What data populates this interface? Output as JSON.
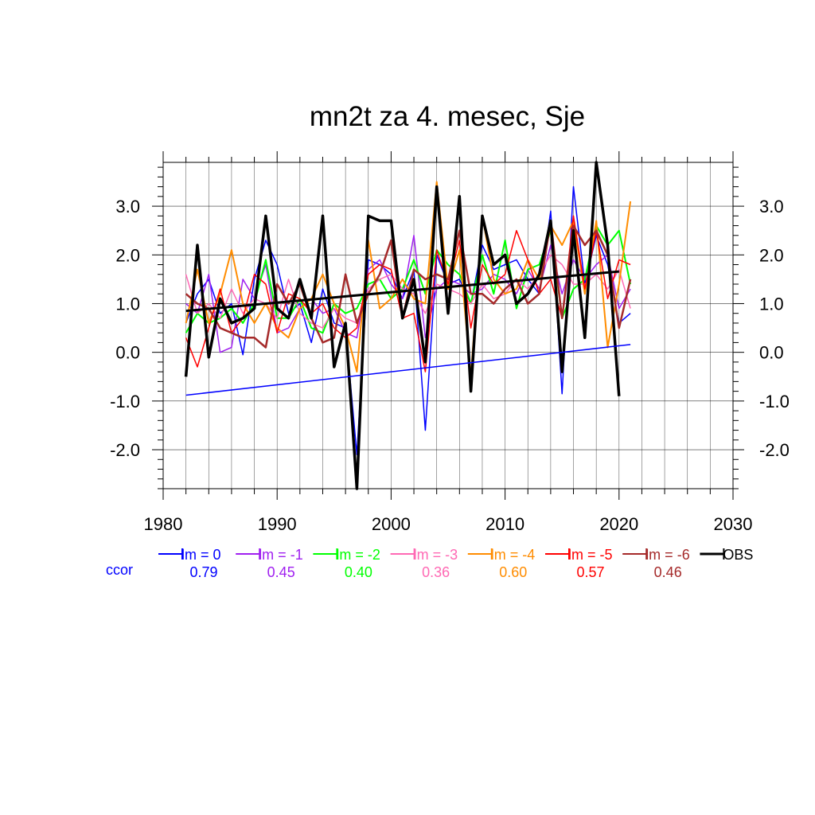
{
  "chart_data": {
    "type": "line",
    "title": "mn2t za 4. mesec, Sje",
    "xlabel": "",
    "ylabel": "",
    "xlim": [
      1980,
      2030
    ],
    "ylim": [
      -2.8,
      3.9
    ],
    "x_ticks": [
      1980,
      1990,
      2000,
      2010,
      2020,
      2030
    ],
    "x_tick_labels": [
      "1980",
      "1990",
      "2000",
      "2010",
      "2020",
      "2030"
    ],
    "y_ticks": [
      3.0,
      2.0,
      1.0,
      0.0,
      -1.0,
      -2.0
    ],
    "y_tick_labels": [
      "3.0",
      "2.0",
      "1.0",
      "0.0",
      "-1.0",
      "-2.0"
    ],
    "grid": true,
    "legend_position": "bottom",
    "ccor_label": "ccor",
    "x": [
      1982,
      1983,
      1984,
      1985,
      1986,
      1987,
      1988,
      1989,
      1990,
      1991,
      1992,
      1993,
      1994,
      1995,
      1996,
      1997,
      1998,
      1999,
      2000,
      2001,
      2002,
      2003,
      2004,
      2005,
      2006,
      2007,
      2008,
      2009,
      2010,
      2011,
      2012,
      2013,
      2014,
      2015,
      2016,
      2017,
      2018,
      2019,
      2020,
      2021
    ],
    "series": [
      {
        "name": "lm = 0",
        "color": "#0000ff",
        "width": 1.5,
        "ccor": "0.79",
        "values": [
          0.6,
          1.2,
          1.5,
          0.8,
          1.0,
          -0.05,
          1.5,
          2.3,
          1.8,
          0.8,
          1.0,
          0.2,
          1.3,
          0.6,
          0.5,
          -2.1,
          1.9,
          1.8,
          1.6,
          1.1,
          1.7,
          -1.6,
          2.0,
          1.4,
          1.5,
          1.0,
          2.2,
          1.7,
          1.8,
          1.9,
          1.5,
          1.2,
          2.9,
          -0.85,
          3.4,
          1.4,
          2.4,
          1.8,
          0.6,
          0.8
        ]
      },
      {
        "name": "lm = -1",
        "color": "#a020f0",
        "width": 1.5,
        "ccor": "0.45",
        "values": [
          1.0,
          0.8,
          1.6,
          0.0,
          0.1,
          1.5,
          1.1,
          1.8,
          0.4,
          0.5,
          0.9,
          1.1,
          0.8,
          0.9,
          0.4,
          0.3,
          1.7,
          1.9,
          1.4,
          1.1,
          2.4,
          0.3,
          1.3,
          1.5,
          1.4,
          1.2,
          1.3,
          1.6,
          1.5,
          1.2,
          1.7,
          1.3,
          2.2,
          1.2,
          1.9,
          1.5,
          1.8,
          2.0,
          0.9,
          1.3
        ]
      },
      {
        "name": "lm = -2",
        "color": "#00ff00",
        "width": 2,
        "ccor": "0.40",
        "values": [
          0.4,
          0.8,
          0.6,
          0.7,
          0.9,
          0.6,
          1.0,
          1.9,
          0.7,
          0.7,
          1.1,
          0.5,
          0.4,
          1.0,
          0.8,
          0.9,
          1.4,
          1.5,
          1.1,
          1.3,
          1.9,
          1.2,
          2.1,
          1.8,
          1.6,
          1.0,
          2.0,
          1.2,
          2.3,
          0.9,
          1.7,
          1.8,
          2.5,
          0.7,
          1.3,
          1.5,
          2.6,
          2.2,
          2.5,
          1.4
        ]
      },
      {
        "name": "lm = -3",
        "color": "#ff69b4",
        "width": 1.5,
        "ccor": "0.36",
        "values": [
          1.6,
          0.8,
          1.0,
          0.7,
          1.3,
          0.8,
          1.1,
          1.0,
          0.7,
          1.5,
          0.8,
          0.6,
          0.5,
          0.9,
          0.7,
          0.6,
          1.3,
          1.5,
          1.6,
          1.3,
          1.2,
          0.8,
          1.4,
          1.3,
          1.2,
          1.0,
          1.4,
          1.1,
          1.2,
          1.5,
          1.3,
          1.6,
          2.0,
          1.8,
          1.4,
          1.4,
          1.6,
          1.3,
          1.7,
          0.9
        ]
      },
      {
        "name": "lm = -4",
        "color": "#ff8c00",
        "width": 2,
        "ccor": "0.60",
        "values": [
          0.6,
          1.7,
          0.6,
          1.2,
          2.1,
          1.0,
          0.6,
          1.0,
          0.5,
          0.3,
          0.9,
          1.1,
          1.6,
          1.0,
          0.5,
          -0.4,
          2.3,
          0.9,
          1.1,
          1.5,
          1.1,
          1.0,
          3.5,
          1.3,
          2.1,
          -0.5,
          2.8,
          1.5,
          1.2,
          1.3,
          1.9,
          1.5,
          2.6,
          2.2,
          2.7,
          1.2,
          2.7,
          0.1,
          1.4,
          3.1
        ]
      },
      {
        "name": "lm = -5",
        "color": "#ff0000",
        "width": 1.5,
        "ccor": "0.57",
        "values": [
          0.3,
          -0.3,
          0.5,
          1.3,
          0.4,
          0.7,
          1.6,
          1.4,
          0.4,
          1.2,
          1.1,
          0.8,
          1.0,
          0.5,
          0.3,
          0.5,
          1.6,
          1.8,
          1.7,
          0.7,
          0.8,
          -0.4,
          2.1,
          1.4,
          2.3,
          0.5,
          1.8,
          1.4,
          1.6,
          2.5,
          1.9,
          1.2,
          1.5,
          0.7,
          2.8,
          1.3,
          2.5,
          1.1,
          1.9,
          1.8
        ]
      },
      {
        "name": "lm = -6",
        "color": "#a52a2a",
        "width": 2.5,
        "ccor": "0.46",
        "values": [
          1.2,
          1.0,
          0.9,
          0.5,
          0.4,
          0.3,
          0.3,
          0.1,
          1.4,
          1.0,
          1.4,
          0.7,
          0.2,
          0.3,
          1.6,
          0.6,
          1.2,
          1.6,
          2.3,
          0.7,
          1.7,
          1.5,
          1.6,
          1.5,
          2.5,
          1.2,
          1.2,
          1.0,
          1.3,
          1.5,
          1.0,
          1.2,
          2.7,
          0.7,
          2.6,
          2.2,
          2.5,
          2.0,
          0.5,
          1.5
        ]
      },
      {
        "name": "OBS",
        "color": "#000000",
        "width": 3.5,
        "ccor": "",
        "values": [
          -0.5,
          2.2,
          -0.1,
          1.1,
          0.6,
          0.7,
          0.9,
          2.8,
          0.9,
          0.7,
          1.5,
          0.7,
          2.8,
          -0.3,
          0.6,
          -2.8,
          2.8,
          2.7,
          2.7,
          0.7,
          1.5,
          -0.2,
          3.4,
          0.8,
          3.2,
          -0.8,
          2.8,
          1.8,
          2.0,
          1.0,
          1.2,
          1.6,
          2.7,
          -0.4,
          2.5,
          0.3,
          3.9,
          2.2,
          -0.9,
          null
        ]
      }
    ],
    "trend_lines": [
      {
        "name": "OBS trend",
        "color": "#000000",
        "width": 3,
        "x": [
          1982,
          2020
        ],
        "y": [
          0.85,
          1.66
        ]
      },
      {
        "name": "lm = 0 trend",
        "color": "#0000ff",
        "width": 1.5,
        "x": [
          1982,
          2021
        ],
        "y": [
          -0.88,
          0.16
        ]
      }
    ]
  }
}
